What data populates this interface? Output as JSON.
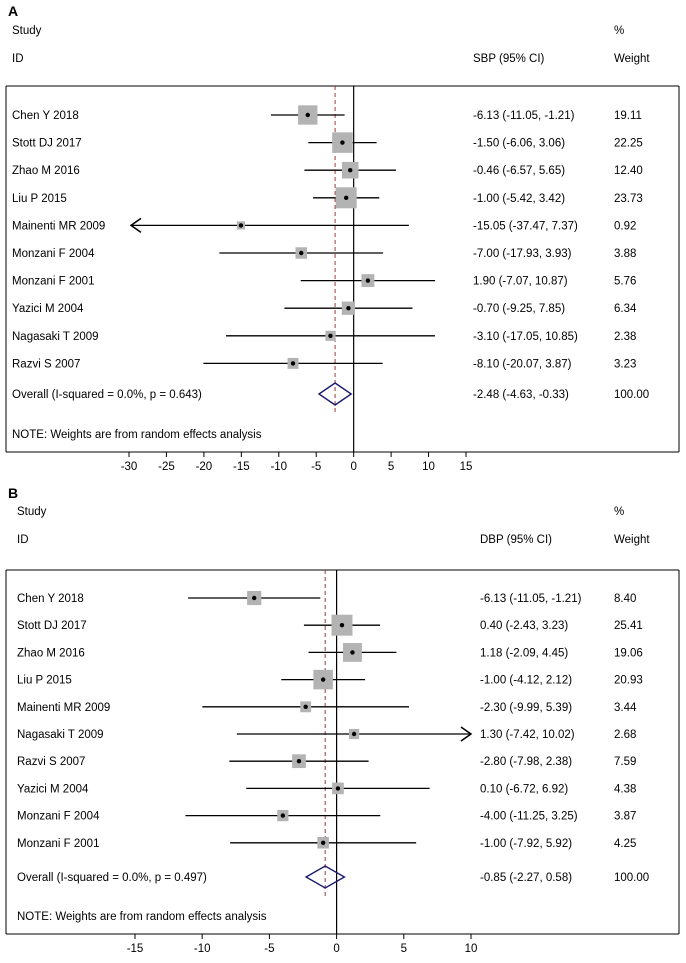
{
  "chart_data": [
    {
      "type": "forest",
      "panel_label": "A",
      "header": {
        "study": "Study",
        "id": "ID",
        "measure": "SBP (95% CI)",
        "percent": "%",
        "weight": "Weight"
      },
      "studies": [
        {
          "id": "Chen Y 2018",
          "estimate": -6.13,
          "lower": -11.05,
          "upper": -1.21,
          "ci_text": "-6.13 (-11.05, -1.21)",
          "weight": 19.11,
          "weight_text": "19.11"
        },
        {
          "id": "Stott DJ 2017",
          "estimate": -1.5,
          "lower": -6.06,
          "upper": 3.06,
          "ci_text": "-1.50 (-6.06, 3.06)",
          "weight": 22.25,
          "weight_text": "22.25"
        },
        {
          "id": "Zhao M 2016",
          "estimate": -0.46,
          "lower": -6.57,
          "upper": 5.65,
          "ci_text": "-0.46 (-6.57, 5.65)",
          "weight": 12.4,
          "weight_text": "12.40"
        },
        {
          "id": "Liu P 2015",
          "estimate": -1.0,
          "lower": -5.42,
          "upper": 3.42,
          "ci_text": "-1.00 (-5.42, 3.42)",
          "weight": 23.73,
          "weight_text": "23.73"
        },
        {
          "id": "Mainenti MR 2009",
          "estimate": -15.05,
          "lower": -37.47,
          "upper": 7.37,
          "ci_text": "-15.05 (-37.47, 7.37)",
          "weight": 0.92,
          "weight_text": "0.92"
        },
        {
          "id": "Monzani F 2004",
          "estimate": -7.0,
          "lower": -17.93,
          "upper": 3.93,
          "ci_text": "-7.00 (-17.93, 3.93)",
          "weight": 3.88,
          "weight_text": "3.88"
        },
        {
          "id": "Monzani F 2001",
          "estimate": 1.9,
          "lower": -7.07,
          "upper": 10.87,
          "ci_text": "1.90 (-7.07, 10.87)",
          "weight": 5.76,
          "weight_text": "5.76"
        },
        {
          "id": "Yazici M 2004",
          "estimate": -0.7,
          "lower": -9.25,
          "upper": 7.85,
          "ci_text": "-0.70 (-9.25, 7.85)",
          "weight": 6.34,
          "weight_text": "6.34"
        },
        {
          "id": "Nagasaki T 2009",
          "estimate": -3.1,
          "lower": -17.05,
          "upper": 10.85,
          "ci_text": "-3.10 (-17.05, 10.85)",
          "weight": 2.38,
          "weight_text": "2.38"
        },
        {
          "id": "Razvi S 2007",
          "estimate": -8.1,
          "lower": -20.07,
          "upper": 3.87,
          "ci_text": "-8.10 (-20.07, 3.87)",
          "weight": 3.23,
          "weight_text": "3.23"
        }
      ],
      "overall": {
        "label": "Overall  (I-squared = 0.0%, p = 0.643)",
        "estimate": -2.48,
        "lower": -4.63,
        "upper": -0.33,
        "ci_text": "-2.48 (-4.63, -0.33)",
        "weight_text": "100.00"
      },
      "note": "NOTE: Weights are from random effects analysis",
      "xlim": [
        -30,
        15
      ],
      "xticks": [
        -30,
        -25,
        -20,
        -15,
        -10,
        -5,
        0,
        5,
        10,
        15
      ],
      "tick_labels": [
        "-30",
        "-25",
        "-20",
        "-15",
        "-10",
        "-5",
        "0",
        "5",
        "10",
        "15"
      ]
    },
    {
      "type": "forest",
      "panel_label": "B",
      "header": {
        "study": "Study",
        "id": "ID",
        "measure": "DBP (95% CI)",
        "percent": "%",
        "weight": "Weight"
      },
      "studies": [
        {
          "id": "Chen Y 2018",
          "estimate": -6.13,
          "lower": -11.05,
          "upper": -1.21,
          "ci_text": "-6.13 (-11.05, -1.21)",
          "weight": 8.4,
          "weight_text": "8.40"
        },
        {
          "id": "Stott DJ 2017",
          "estimate": 0.4,
          "lower": -2.43,
          "upper": 3.23,
          "ci_text": "0.40 (-2.43, 3.23)",
          "weight": 25.41,
          "weight_text": "25.41"
        },
        {
          "id": "Zhao M 2016",
          "estimate": 1.18,
          "lower": -2.09,
          "upper": 4.45,
          "ci_text": "1.18 (-2.09, 4.45)",
          "weight": 19.06,
          "weight_text": "19.06"
        },
        {
          "id": "Liu P 2015",
          "estimate": -1.0,
          "lower": -4.12,
          "upper": 2.12,
          "ci_text": "-1.00 (-4.12, 2.12)",
          "weight": 20.93,
          "weight_text": "20.93"
        },
        {
          "id": "Mainenti MR 2009",
          "estimate": -2.3,
          "lower": -9.99,
          "upper": 5.39,
          "ci_text": "-2.30 (-9.99, 5.39)",
          "weight": 3.44,
          "weight_text": "3.44"
        },
        {
          "id": "Nagasaki T 2009",
          "estimate": 1.3,
          "lower": -7.42,
          "upper": 10.02,
          "ci_text": "1.30 (-7.42, 10.02)",
          "weight": 2.68,
          "weight_text": "2.68"
        },
        {
          "id": "Razvi S 2007",
          "estimate": -2.8,
          "lower": -7.98,
          "upper": 2.38,
          "ci_text": "-2.80 (-7.98, 2.38)",
          "weight": 7.59,
          "weight_text": "7.59"
        },
        {
          "id": "Yazici M 2004",
          "estimate": 0.1,
          "lower": -6.72,
          "upper": 6.92,
          "ci_text": "0.10 (-6.72, 6.92)",
          "weight": 4.38,
          "weight_text": "4.38"
        },
        {
          "id": "Monzani F 2004",
          "estimate": -4.0,
          "lower": -11.25,
          "upper": 3.25,
          "ci_text": "-4.00 (-11.25, 3.25)",
          "weight": 3.87,
          "weight_text": "3.87"
        },
        {
          "id": "Monzani F 2001",
          "estimate": -1.0,
          "lower": -7.92,
          "upper": 5.92,
          "ci_text": "-1.00 (-7.92, 5.92)",
          "weight": 4.25,
          "weight_text": "4.25"
        }
      ],
      "overall": {
        "label": "Overall  (I-squared = 0.0%, p = 0.497)",
        "estimate": -0.85,
        "lower": -2.27,
        "upper": 0.58,
        "ci_text": "-0.85 (-2.27, 0.58)",
        "weight_text": "100.00"
      },
      "note": "NOTE: Weights are from random effects analysis",
      "xlim": [
        -15,
        10
      ],
      "xticks": [
        -15,
        -10,
        -5,
        0,
        5,
        10
      ],
      "tick_labels": [
        "-15",
        "-10",
        "-5",
        "0",
        "5",
        "10"
      ]
    }
  ],
  "colors": {
    "square": "#b3b3b3",
    "line": "#000000",
    "diamond": "#1a1a6e",
    "dashed_line": "#b03030"
  }
}
